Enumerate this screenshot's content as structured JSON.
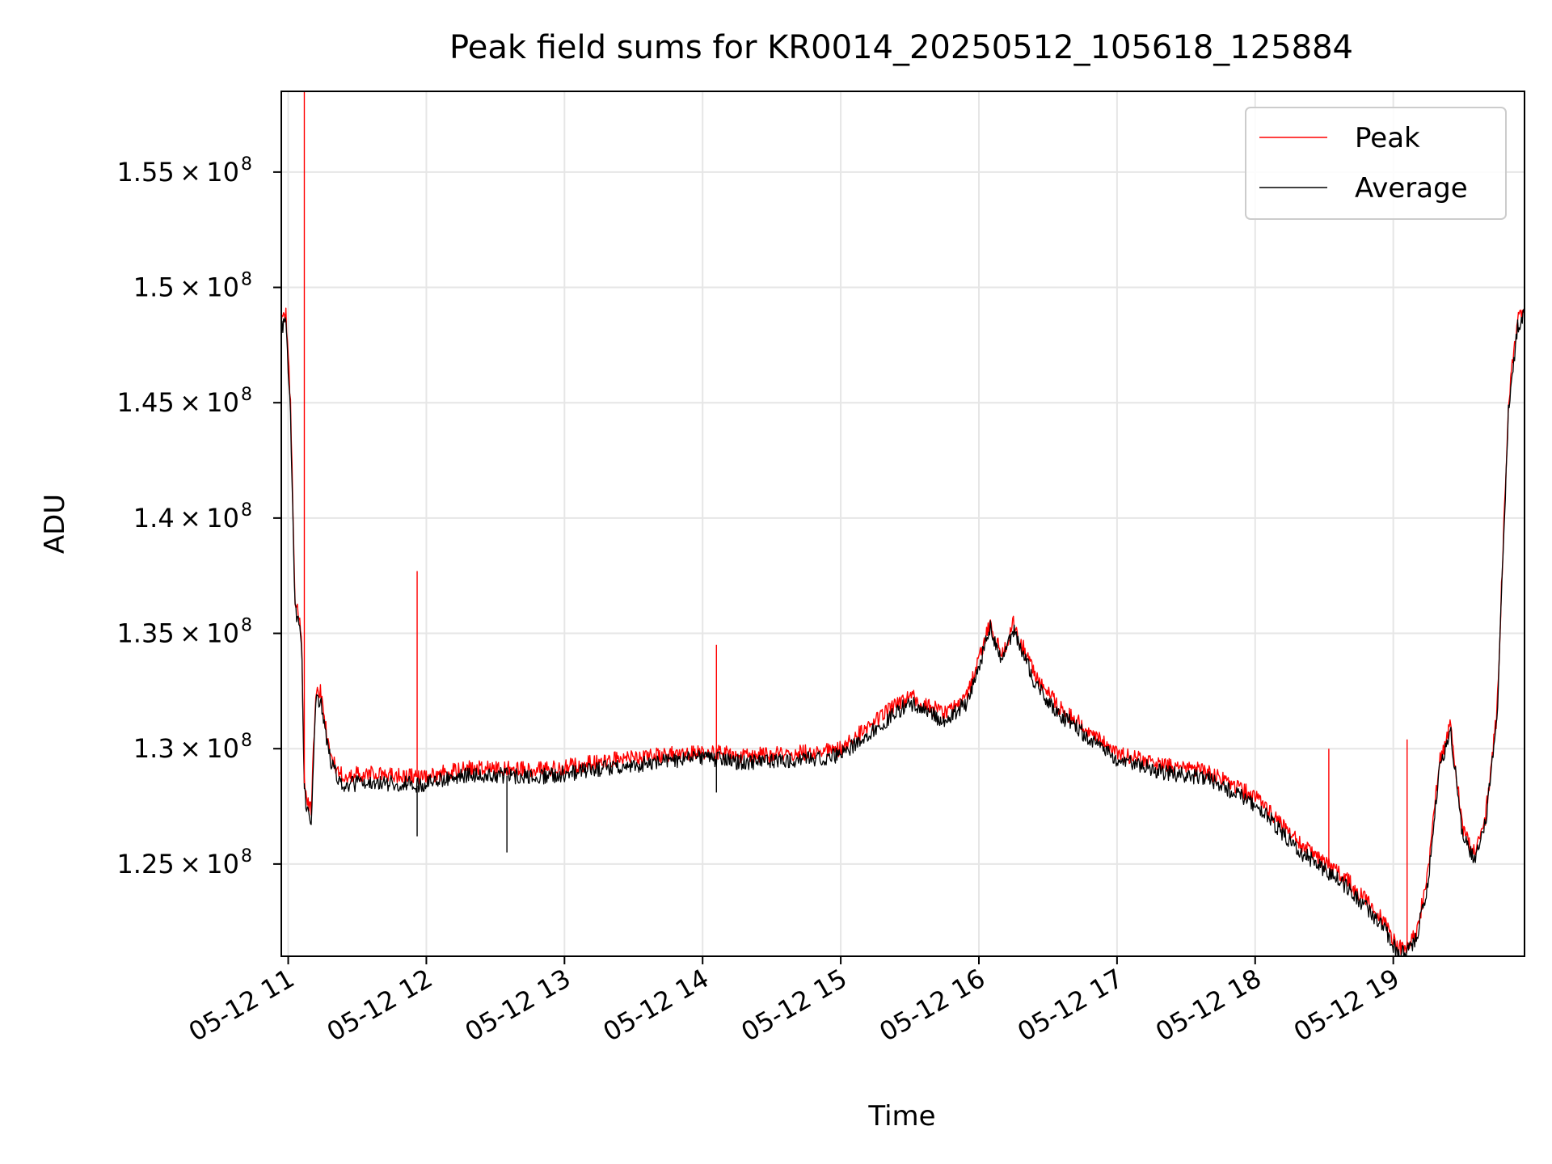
{
  "chart_data": {
    "type": "line",
    "title": "Peak field sums for KR0014_20250512_105618_125884",
    "xlabel": "Time",
    "ylabel": "ADU",
    "xlim": [
      "2025-05-12 10:57",
      "2025-05-12 19:57"
    ],
    "ylim": [
      121000000,
      158500000
    ],
    "grid": true,
    "legend_position": "top-right",
    "x_ticks": [
      {
        "value": "2025-05-12 11:00",
        "label": "05-12 11"
      },
      {
        "value": "2025-05-12 12:00",
        "label": "05-12 12"
      },
      {
        "value": "2025-05-12 13:00",
        "label": "05-12 13"
      },
      {
        "value": "2025-05-12 14:00",
        "label": "05-12 14"
      },
      {
        "value": "2025-05-12 15:00",
        "label": "05-12 15"
      },
      {
        "value": "2025-05-12 16:00",
        "label": "05-12 16"
      },
      {
        "value": "2025-05-12 17:00",
        "label": "05-12 17"
      },
      {
        "value": "2025-05-12 18:00",
        "label": "05-12 18"
      },
      {
        "value": "2025-05-12 19:00",
        "label": "05-12 19"
      }
    ],
    "y_ticks": [
      {
        "value": 125000000,
        "mantissa": "1.25",
        "exponent": "8"
      },
      {
        "value": 130000000,
        "mantissa": "1.3",
        "exponent": "8"
      },
      {
        "value": 135000000,
        "mantissa": "1.35",
        "exponent": "8"
      },
      {
        "value": 140000000,
        "mantissa": "1.4",
        "exponent": "8"
      },
      {
        "value": 145000000,
        "mantissa": "1.45",
        "exponent": "8"
      },
      {
        "value": 150000000,
        "mantissa": "1.5",
        "exponent": "8"
      },
      {
        "value": 155000000,
        "mantissa": "1.55",
        "exponent": "8"
      }
    ],
    "series": [
      {
        "name": "Peak",
        "color": "#ff0000",
        "x": [
          "2025-05-12 10:57",
          "2025-05-12 10:59",
          "2025-05-12 11:01",
          "2025-05-12 11:03",
          "2025-05-12 11:05",
          "2025-05-12 11:06",
          "2025-05-12 11:07",
          "2025-05-12 11:08",
          "2025-05-12 11:10",
          "2025-05-12 11:12",
          "2025-05-12 11:14",
          "2025-05-12 11:16",
          "2025-05-12 11:18",
          "2025-05-12 11:20",
          "2025-05-12 11:22",
          "2025-05-12 11:24",
          "2025-05-12 11:26",
          "2025-05-12 11:30",
          "2025-05-12 11:40",
          "2025-05-12 11:50",
          "2025-05-12 11:56",
          "2025-05-12 12:00",
          "2025-05-12 12:20",
          "2025-05-12 12:40",
          "2025-05-12 12:50",
          "2025-05-12 13:00",
          "2025-05-12 13:20",
          "2025-05-12 13:40",
          "2025-05-12 14:00",
          "2025-05-12 14:20",
          "2025-05-12 14:40",
          "2025-05-12 15:00",
          "2025-05-12 15:15",
          "2025-05-12 15:30",
          "2025-05-12 15:45",
          "2025-05-12 15:55",
          "2025-05-12 16:05",
          "2025-05-12 16:10",
          "2025-05-12 16:15",
          "2025-05-12 16:20",
          "2025-05-12 16:25",
          "2025-05-12 16:35",
          "2025-05-12 16:50",
          "2025-05-12 17:00",
          "2025-05-12 17:20",
          "2025-05-12 17:40",
          "2025-05-12 18:00",
          "2025-05-12 18:20",
          "2025-05-12 18:40",
          "2025-05-12 18:55",
          "2025-05-12 19:02",
          "2025-05-12 19:06",
          "2025-05-12 19:10",
          "2025-05-12 19:15",
          "2025-05-12 19:20",
          "2025-05-12 19:25",
          "2025-05-12 19:30",
          "2025-05-12 19:35",
          "2025-05-12 19:40",
          "2025-05-12 19:45",
          "2025-05-12 19:50",
          "2025-05-12 19:54",
          "2025-05-12 19:57"
        ],
        "y": [
          148500000,
          148800000,
          145000000,
          136500000,
          135800000,
          134000000,
          128500000,
          127800000,
          127300000,
          132500000,
          132500000,
          131000000,
          130000000,
          129300000,
          129000000,
          128900000,
          128800000,
          128900000,
          128900000,
          128800000,
          128800000,
          128800000,
          129200000,
          129100000,
          129100000,
          129200000,
          129500000,
          129700000,
          129900000,
          129700000,
          129800000,
          130000000,
          131200000,
          132300000,
          131500000,
          132300000,
          135500000,
          134000000,
          135400000,
          134200000,
          133000000,
          131800000,
          130600000,
          129800000,
          129300000,
          129000000,
          127900000,
          125800000,
          124300000,
          122700000,
          121300000,
          121500000,
          122000000,
          124500000,
          129500000,
          131000000,
          126500000,
          125500000,
          127000000,
          131500000,
          145000000,
          148700000,
          149200000
        ]
      },
      {
        "name": "Average",
        "color": "#000000",
        "x": [
          "2025-05-12 10:57",
          "2025-05-12 10:59",
          "2025-05-12 11:01",
          "2025-05-12 11:03",
          "2025-05-12 11:05",
          "2025-05-12 11:06",
          "2025-05-12 11:07",
          "2025-05-12 11:08",
          "2025-05-12 11:10",
          "2025-05-12 11:12",
          "2025-05-12 11:14",
          "2025-05-12 11:16",
          "2025-05-12 11:18",
          "2025-05-12 11:20",
          "2025-05-12 11:22",
          "2025-05-12 11:24",
          "2025-05-12 11:26",
          "2025-05-12 11:30",
          "2025-05-12 11:40",
          "2025-05-12 11:50",
          "2025-05-12 11:56",
          "2025-05-12 12:00",
          "2025-05-12 12:20",
          "2025-05-12 12:40",
          "2025-05-12 12:50",
          "2025-05-12 13:00",
          "2025-05-12 13:20",
          "2025-05-12 13:40",
          "2025-05-12 14:00",
          "2025-05-12 14:20",
          "2025-05-12 14:40",
          "2025-05-12 15:00",
          "2025-05-12 15:15",
          "2025-05-12 15:30",
          "2025-05-12 15:45",
          "2025-05-12 15:55",
          "2025-05-12 16:05",
          "2025-05-12 16:10",
          "2025-05-12 16:15",
          "2025-05-12 16:20",
          "2025-05-12 16:25",
          "2025-05-12 16:35",
          "2025-05-12 16:50",
          "2025-05-12 17:00",
          "2025-05-12 17:20",
          "2025-05-12 17:40",
          "2025-05-12 18:00",
          "2025-05-12 18:20",
          "2025-05-12 18:40",
          "2025-05-12 18:55",
          "2025-05-12 19:02",
          "2025-05-12 19:06",
          "2025-05-12 19:10",
          "2025-05-12 19:15",
          "2025-05-12 19:20",
          "2025-05-12 19:25",
          "2025-05-12 19:30",
          "2025-05-12 19:35",
          "2025-05-12 19:40",
          "2025-05-12 19:45",
          "2025-05-12 19:50",
          "2025-05-12 19:54",
          "2025-05-12 19:57"
        ],
        "y": [
          148200000,
          148400000,
          144500000,
          136000000,
          135300000,
          133800000,
          128200000,
          127500000,
          127000000,
          132200000,
          132100000,
          130700000,
          129700000,
          129000000,
          128700000,
          128500000,
          128400000,
          128500000,
          128500000,
          128500000,
          128400000,
          128500000,
          128900000,
          128800000,
          128800000,
          128900000,
          129200000,
          129400000,
          129600000,
          129400000,
          129500000,
          129700000,
          130900000,
          132000000,
          131200000,
          132000000,
          135200000,
          133700000,
          135100000,
          133900000,
          132700000,
          131500000,
          130300000,
          129500000,
          129000000,
          128700000,
          127600000,
          125500000,
          124000000,
          122400000,
          121100000,
          121200000,
          121700000,
          124200000,
          129200000,
          130700000,
          126200000,
          125200000,
          126700000,
          131200000,
          144700000,
          148300000,
          148800000
        ]
      }
    ],
    "spikes": [
      {
        "series": "Peak",
        "x": "2025-05-12 11:07",
        "y": 158500000
      },
      {
        "series": "Peak",
        "x": "2025-05-12 11:56",
        "y": 137700000
      },
      {
        "series": "Peak",
        "x": "2025-05-12 14:06",
        "y": 134500000
      },
      {
        "series": "Peak",
        "x": "2025-05-12 18:32",
        "y": 130000000
      },
      {
        "series": "Peak",
        "x": "2025-05-12 19:06",
        "y": 130400000
      },
      {
        "series": "Average",
        "x": "2025-05-12 11:56",
        "y": 126200000
      },
      {
        "series": "Average",
        "x": "2025-05-12 12:35",
        "y": 125500000
      },
      {
        "series": "Average",
        "x": "2025-05-12 14:06",
        "y": 128100000
      }
    ]
  }
}
